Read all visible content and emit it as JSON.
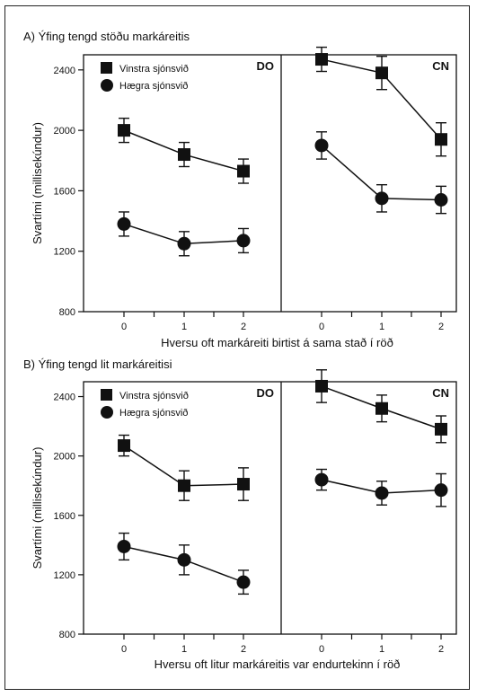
{
  "chart_data": [
    {
      "type": "line",
      "title": "A) Ýfing tengd stöðu markáreitis",
      "ylabel": "Svartími (millisekúndur)",
      "xlabel": "Hversu oft markáreiti birtist á sama stað í röð",
      "ylim": [
        800,
        2500
      ],
      "yticks": [
        "2400",
        "2000",
        "1600",
        "1200",
        "800"
      ],
      "ytick_values": [
        2400,
        2000,
        1600,
        1200,
        800
      ],
      "x": [
        "0",
        "1",
        "2"
      ],
      "legend": [
        "Vinstra sjónsvið",
        "Hægra sjónsvið"
      ],
      "panels": [
        {
          "name": "DO",
          "series": [
            {
              "name": "Vinstra sjónsvið",
              "marker": "square",
              "values": [
                2000,
                1840,
                1730
              ],
              "errors": [
                80,
                80,
                80
              ]
            },
            {
              "name": "Hægra sjónsvið",
              "marker": "circle",
              "values": [
                1380,
                1250,
                1270
              ],
              "errors": [
                80,
                80,
                80
              ]
            }
          ]
        },
        {
          "name": "CN",
          "series": [
            {
              "name": "Vinstra sjónsvið",
              "marker": "square",
              "values": [
                2470,
                2380,
                1940
              ],
              "errors": [
                80,
                110,
                110
              ]
            },
            {
              "name": "Hægra sjónsvið",
              "marker": "circle",
              "values": [
                1900,
                1550,
                1540
              ],
              "errors": [
                90,
                90,
                90
              ]
            }
          ]
        }
      ]
    },
    {
      "type": "line",
      "title": "B) Ýfing tengd lit markáreitisi",
      "ylabel": "Svartími (millisekúndur)",
      "xlabel": "Hversu oft litur markáreitis var endurtekinn í röð",
      "ylim": [
        800,
        2500
      ],
      "yticks": [
        "2400",
        "2000",
        "1600",
        "1200",
        "800"
      ],
      "ytick_values": [
        2400,
        2000,
        1600,
        1200,
        800
      ],
      "x": [
        "0",
        "1",
        "2"
      ],
      "legend": [
        "Vinstra sjónsvið",
        "Hægra sjónsvið"
      ],
      "panels": [
        {
          "name": "DO",
          "series": [
            {
              "name": "Vinstra sjónsvið",
              "marker": "square",
              "values": [
                2070,
                1800,
                1810
              ],
              "errors": [
                70,
                100,
                110
              ]
            },
            {
              "name": "Hægra sjónsvið",
              "marker": "circle",
              "values": [
                1390,
                1300,
                1150
              ],
              "errors": [
                90,
                100,
                80
              ]
            }
          ]
        },
        {
          "name": "CN",
          "series": [
            {
              "name": "Vinstra sjónsvið",
              "marker": "square",
              "values": [
                2470,
                2320,
                2180
              ],
              "errors": [
                110,
                90,
                90
              ]
            },
            {
              "name": "Hægra sjónsvið",
              "marker": "circle",
              "values": [
                1840,
                1750,
                1770
              ],
              "errors": [
                70,
                80,
                110
              ]
            }
          ]
        }
      ]
    }
  ]
}
